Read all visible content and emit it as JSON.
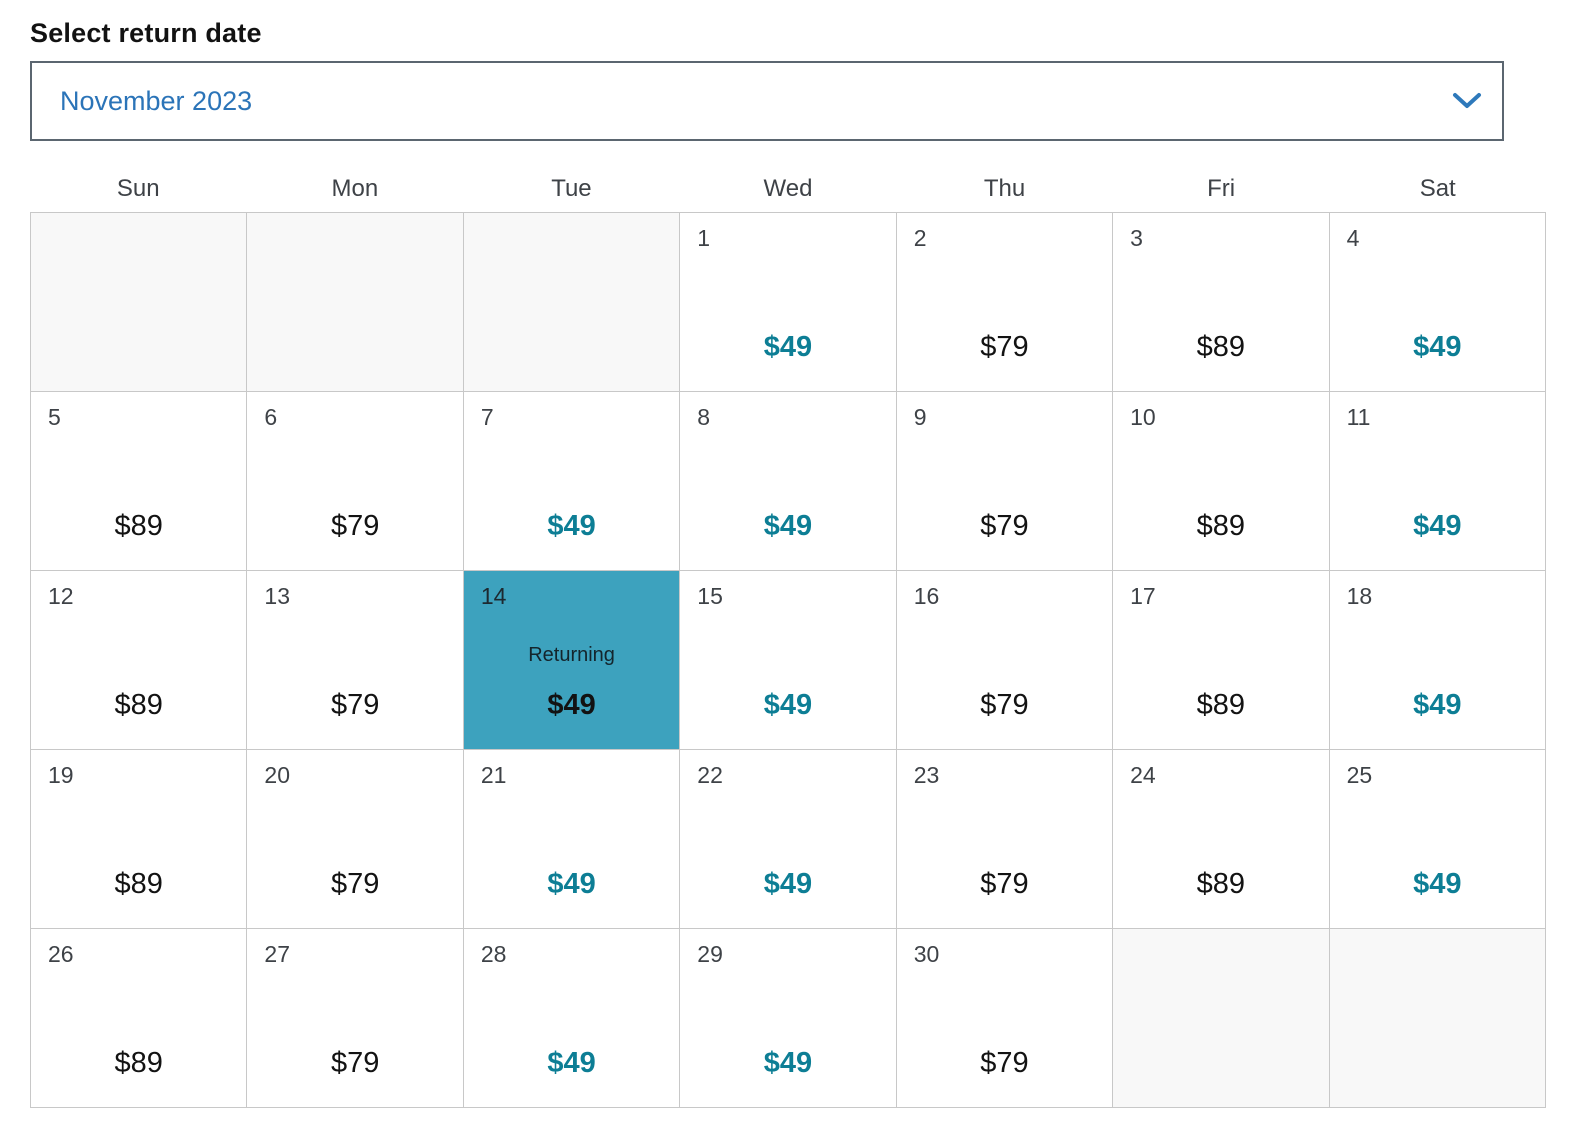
{
  "header": {
    "title": "Select return date"
  },
  "month_selector": {
    "value": "November 2023"
  },
  "calendar": {
    "weekdays": [
      "Sun",
      "Mon",
      "Tue",
      "Wed",
      "Thu",
      "Fri",
      "Sat"
    ],
    "weeks": [
      [
        {
          "state": "empty"
        },
        {
          "state": "empty"
        },
        {
          "state": "empty"
        },
        {
          "day": "1",
          "price": "$49",
          "state": "low"
        },
        {
          "day": "2",
          "price": "$79",
          "state": "std"
        },
        {
          "day": "3",
          "price": "$89",
          "state": "std"
        },
        {
          "day": "4",
          "price": "$49",
          "state": "low"
        }
      ],
      [
        {
          "day": "5",
          "price": "$89",
          "state": "std"
        },
        {
          "day": "6",
          "price": "$79",
          "state": "std"
        },
        {
          "day": "7",
          "price": "$49",
          "state": "low"
        },
        {
          "day": "8",
          "price": "$49",
          "state": "low"
        },
        {
          "day": "9",
          "price": "$79",
          "state": "std"
        },
        {
          "day": "10",
          "price": "$89",
          "state": "std"
        },
        {
          "day": "11",
          "price": "$49",
          "state": "low"
        }
      ],
      [
        {
          "day": "12",
          "price": "$89",
          "state": "std"
        },
        {
          "day": "13",
          "price": "$79",
          "state": "std"
        },
        {
          "day": "14",
          "price": "$49",
          "state": "selected",
          "label": "Returning"
        },
        {
          "day": "15",
          "price": "$49",
          "state": "low"
        },
        {
          "day": "16",
          "price": "$79",
          "state": "std"
        },
        {
          "day": "17",
          "price": "$89",
          "state": "std"
        },
        {
          "day": "18",
          "price": "$49",
          "state": "low"
        }
      ],
      [
        {
          "day": "19",
          "price": "$89",
          "state": "std"
        },
        {
          "day": "20",
          "price": "$79",
          "state": "std"
        },
        {
          "day": "21",
          "price": "$49",
          "state": "low"
        },
        {
          "day": "22",
          "price": "$49",
          "state": "low"
        },
        {
          "day": "23",
          "price": "$79",
          "state": "std"
        },
        {
          "day": "24",
          "price": "$89",
          "state": "std"
        },
        {
          "day": "25",
          "price": "$49",
          "state": "low"
        }
      ],
      [
        {
          "day": "26",
          "price": "$89",
          "state": "std"
        },
        {
          "day": "27",
          "price": "$79",
          "state": "std"
        },
        {
          "day": "28",
          "price": "$49",
          "state": "low"
        },
        {
          "day": "29",
          "price": "$49",
          "state": "low"
        },
        {
          "day": "30",
          "price": "$79",
          "state": "std"
        },
        {
          "state": "empty"
        },
        {
          "state": "empty"
        }
      ]
    ]
  },
  "colors": {
    "accent_blue": "#2b74b8",
    "selected_teal": "#3da2be",
    "fare_teal": "#0d7e95",
    "grid_line": "#c8c8c8",
    "empty_cell_bg": "#f8f8f8",
    "dropdown_border": "#5b6670"
  }
}
